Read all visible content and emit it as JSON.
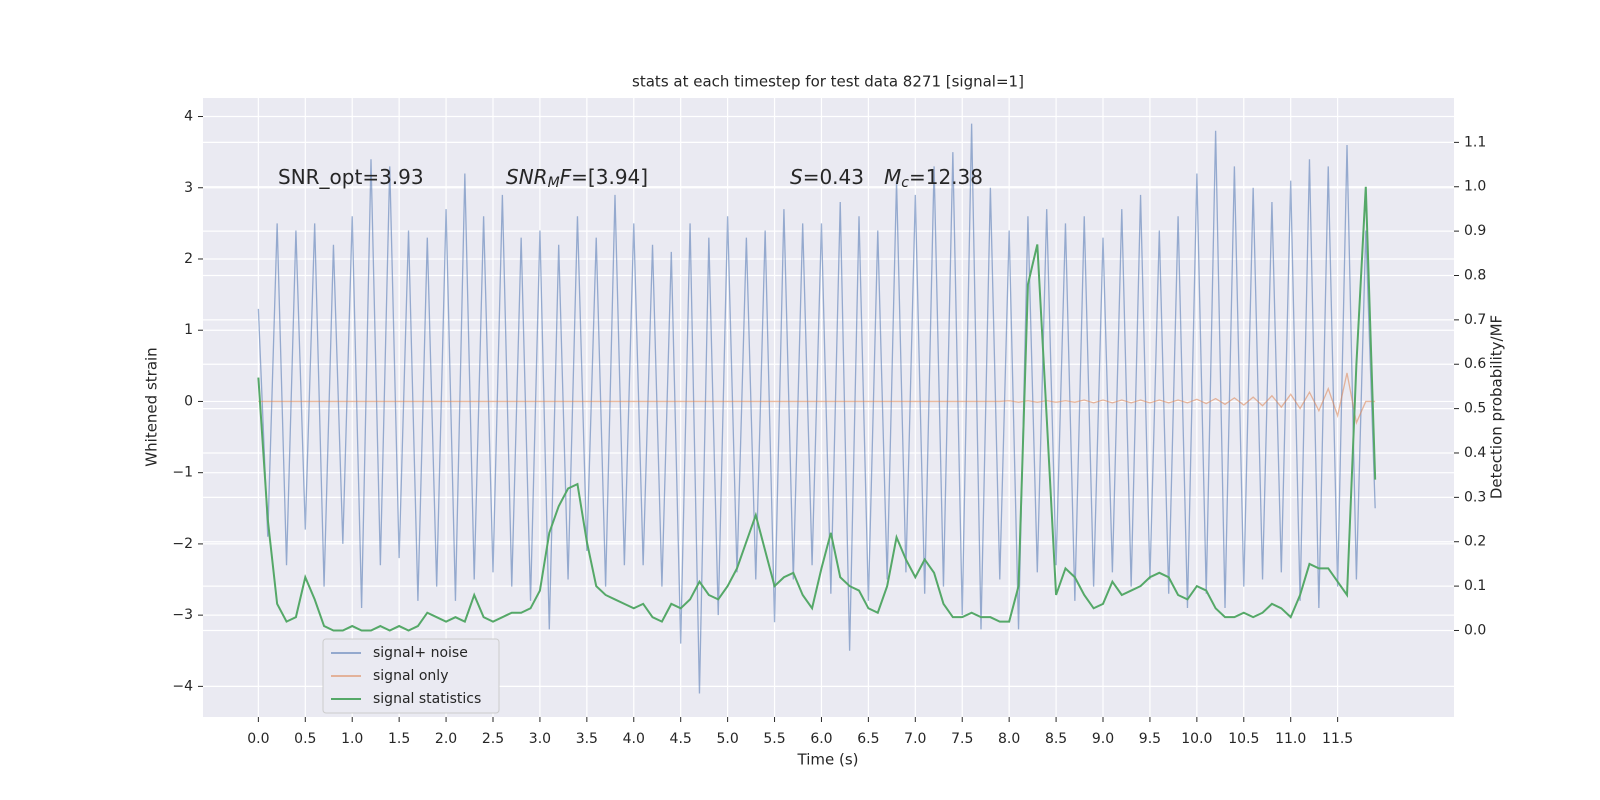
{
  "chart_data": {
    "type": "line",
    "title": "stats at each timestep for test data 8271 [signal=1]",
    "xlabel": "Time (s)",
    "ylabel": "Whitened strain",
    "y2label": "Detection probability/MF",
    "annotations": [
      [
        {
          "text": "SNR_opt=3.93"
        }
      ],
      [
        {
          "text": "SNR",
          "italic": true
        },
        {
          "text": "M",
          "italic": true,
          "sub": true
        },
        {
          "text": "F",
          "italic": true
        },
        {
          "text": "=[3.94]"
        }
      ],
      [
        {
          "text": "S",
          "italic": true
        },
        {
          "text": "=0.43"
        }
      ],
      [
        {
          "text": "M",
          "italic": true
        },
        {
          "text": "c",
          "italic": true,
          "sub": true
        },
        {
          "text": "=12.38"
        }
      ]
    ],
    "x": [
      0,
      0.1,
      0.2,
      0.3,
      0.4,
      0.5,
      0.6,
      0.7,
      0.8,
      0.9,
      1,
      1.1,
      1.2,
      1.3,
      1.4,
      1.5,
      1.6,
      1.7,
      1.8,
      1.9,
      2,
      2.1,
      2.2,
      2.3,
      2.4,
      2.5,
      2.6,
      2.7,
      2.8,
      2.9,
      3,
      3.1,
      3.2,
      3.3,
      3.4,
      3.5,
      3.6,
      3.7,
      3.8,
      3.9,
      4,
      4.1,
      4.2,
      4.3,
      4.4,
      4.5,
      4.6,
      4.7,
      4.8,
      4.9,
      5,
      5.1,
      5.2,
      5.3,
      5.4,
      5.5,
      5.6,
      5.7,
      5.8,
      5.9,
      6,
      6.1,
      6.2,
      6.3,
      6.4,
      6.5,
      6.6,
      6.7,
      6.8,
      6.9,
      7,
      7.1,
      7.2,
      7.3,
      7.4,
      7.5,
      7.6,
      7.7,
      7.8,
      7.9,
      8,
      8.1,
      8.2,
      8.3,
      8.4,
      8.5,
      8.6,
      8.7,
      8.8,
      8.9,
      9,
      9.1,
      9.2,
      9.3,
      9.4,
      9.5,
      9.6,
      9.7,
      9.8,
      9.9,
      10,
      10.1,
      10.2,
      10.3,
      10.4,
      10.5,
      10.6,
      10.7,
      10.8,
      10.9,
      11,
      11.1,
      11.2,
      11.3,
      11.4,
      11.5,
      11.6,
      11.7,
      11.8,
      11.9
    ],
    "series": [
      {
        "name": "signal+ noise",
        "color": "#4c72b0",
        "values": [
          1.3,
          -1.9,
          2.5,
          -2.3,
          2.4,
          -1.8,
          2.5,
          -2.6,
          2.2,
          -2.0,
          2.6,
          -2.9,
          3.4,
          -2.3,
          3.3,
          -2.2,
          2.4,
          -2.8,
          2.3,
          -2.6,
          2.7,
          -2.8,
          3.2,
          -2.5,
          2.6,
          -2.4,
          2.9,
          -2.6,
          2.3,
          -2.8,
          2.4,
          -3.2,
          2.2,
          -2.5,
          2.6,
          -2.1,
          2.3,
          -2.6,
          2.9,
          -2.3,
          2.5,
          -2.3,
          2.2,
          -2.6,
          2.1,
          -3.4,
          2.5,
          -4.1,
          2.3,
          -3.0,
          2.6,
          -2.4,
          2.3,
          -2.5,
          2.4,
          -3.1,
          2.7,
          -2.5,
          2.5,
          -2.3,
          2.5,
          -2.7,
          2.8,
          -3.5,
          2.6,
          -2.8,
          2.4,
          -2.5,
          3.1,
          -2.4,
          2.9,
          -2.7,
          3.3,
          -2.6,
          3.5,
          -3.0,
          3.9,
          -3.2,
          3.0,
          -2.5,
          2.4,
          -3.2,
          2.6,
          -2.4,
          2.7,
          -2.3,
          2.5,
          -2.8,
          2.6,
          -2.6,
          2.3,
          -2.4,
          2.7,
          -2.6,
          2.9,
          -2.5,
          2.4,
          -2.7,
          2.6,
          -2.9,
          3.2,
          -2.7,
          3.8,
          -2.9,
          3.3,
          -2.6,
          3.0,
          -2.5,
          2.8,
          -2.4,
          3.1,
          -2.8,
          3.4,
          -2.9,
          3.3,
          -2.6,
          3.6,
          -2.5,
          2.4,
          -1.5
        ]
      },
      {
        "name": "signal only",
        "color": "#dd8452",
        "values": [
          0,
          0,
          0,
          0,
          0,
          0,
          0,
          0,
          0,
          0,
          0,
          0,
          0,
          0,
          0,
          0,
          0,
          0,
          0,
          0,
          0,
          0,
          0,
          0,
          0,
          0,
          0,
          0,
          0,
          0,
          0,
          0,
          0,
          0,
          0,
          0,
          0,
          0,
          0,
          0,
          0,
          0,
          0,
          0,
          0,
          0,
          0,
          0,
          0,
          0,
          0,
          0,
          0,
          0,
          0,
          0,
          0,
          0,
          0,
          0,
          0,
          0,
          0,
          0,
          0,
          0,
          0,
          0,
          0,
          0,
          0,
          0,
          0,
          0,
          0,
          0,
          0,
          0,
          0,
          0,
          0.01,
          -0.01,
          0.01,
          -0.01,
          0.01,
          -0.01,
          0.01,
          -0.01,
          0.02,
          -0.02,
          0.02,
          -0.02,
          0.02,
          -0.02,
          0.02,
          -0.02,
          0.02,
          -0.02,
          0.02,
          -0.02,
          0.03,
          -0.03,
          0.04,
          -0.04,
          0.05,
          -0.05,
          0.06,
          -0.06,
          0.08,
          -0.08,
          0.1,
          -0.1,
          0.13,
          -0.13,
          0.18,
          -0.2,
          0.4,
          -0.3,
          0,
          0
        ]
      },
      {
        "name": "signal statistics",
        "color": "#55a868",
        "axis": "y2",
        "values": [
          0.57,
          0.25,
          0.06,
          0.02,
          0.03,
          0.12,
          0.07,
          0.01,
          0.0,
          0.0,
          0.01,
          0.0,
          0.0,
          0.01,
          0.0,
          0.01,
          0.0,
          0.01,
          0.04,
          0.03,
          0.02,
          0.03,
          0.02,
          0.08,
          0.03,
          0.02,
          0.03,
          0.04,
          0.04,
          0.05,
          0.09,
          0.22,
          0.28,
          0.32,
          0.33,
          0.2,
          0.1,
          0.08,
          0.07,
          0.06,
          0.05,
          0.06,
          0.03,
          0.02,
          0.06,
          0.05,
          0.07,
          0.11,
          0.08,
          0.07,
          0.1,
          0.14,
          0.2,
          0.26,
          0.18,
          0.1,
          0.12,
          0.13,
          0.08,
          0.05,
          0.14,
          0.22,
          0.12,
          0.1,
          0.09,
          0.05,
          0.04,
          0.1,
          0.21,
          0.16,
          0.12,
          0.16,
          0.13,
          0.06,
          0.03,
          0.03,
          0.04,
          0.03,
          0.03,
          0.02,
          0.02,
          0.1,
          0.78,
          0.87,
          0.48,
          0.08,
          0.14,
          0.12,
          0.08,
          0.05,
          0.06,
          0.11,
          0.08,
          0.09,
          0.1,
          0.12,
          0.13,
          0.12,
          0.08,
          0.07,
          0.1,
          0.09,
          0.05,
          0.03,
          0.03,
          0.04,
          0.03,
          0.04,
          0.06,
          0.05,
          0.03,
          0.08,
          0.15,
          0.14,
          0.14,
          0.11,
          0.08,
          0.6,
          1.0,
          0.34
        ]
      }
    ],
    "xlim": [
      -0.59,
      12.74
    ],
    "xticks": [
      {
        "value": 0,
        "label": "0.0"
      },
      {
        "value": 0.5,
        "label": "0.5"
      },
      {
        "value": 1,
        "label": "1.0"
      },
      {
        "value": 1.5,
        "label": "1.5"
      },
      {
        "value": 2,
        "label": "2.0"
      },
      {
        "value": 2.5,
        "label": "2.5"
      },
      {
        "value": 3,
        "label": "3.0"
      },
      {
        "value": 3.5,
        "label": "3.5"
      },
      {
        "value": 4,
        "label": "4.0"
      },
      {
        "value": 4.5,
        "label": "4.5"
      },
      {
        "value": 5,
        "label": "5.0"
      },
      {
        "value": 5.5,
        "label": "5.5"
      },
      {
        "value": 6,
        "label": "6.0"
      },
      {
        "value": 6.5,
        "label": "6.5"
      },
      {
        "value": 7,
        "label": "7.0"
      },
      {
        "value": 7.5,
        "label": "7.5"
      },
      {
        "value": 8,
        "label": "8.0"
      },
      {
        "value": 8.5,
        "label": "8.5"
      },
      {
        "value": 9,
        "label": "9.0"
      },
      {
        "value": 9.5,
        "label": "9.5"
      },
      {
        "value": 10,
        "label": "10.0"
      },
      {
        "value": 10.5,
        "label": "10.5"
      },
      {
        "value": 11,
        "label": "11.0"
      },
      {
        "value": 11.5,
        "label": "11.5"
      }
    ],
    "ylim": [
      -4.43,
      4.26
    ],
    "yticks": [
      {
        "value": -4,
        "label": "−4"
      },
      {
        "value": -3,
        "label": "−3"
      },
      {
        "value": -2,
        "label": "−2"
      },
      {
        "value": -1,
        "label": "−1"
      },
      0,
      1,
      2,
      3,
      4
    ],
    "y2lim": [
      -0.195,
      1.2
    ],
    "y2ticks": [
      {
        "value": 0,
        "label": "0.0"
      },
      {
        "value": 0.1,
        "label": "0.1"
      },
      {
        "value": 0.2,
        "label": "0.2"
      },
      {
        "value": 0.3,
        "label": "0.3"
      },
      {
        "value": 0.4,
        "label": "0.4"
      },
      {
        "value": 0.5,
        "label": "0.5"
      },
      {
        "value": 0.6,
        "label": "0.6"
      },
      {
        "value": 0.7,
        "label": "0.7"
      },
      {
        "value": 0.8,
        "label": "0.8"
      },
      {
        "value": 0.9,
        "label": "0.9"
      },
      {
        "value": 1,
        "label": "1.0"
      },
      {
        "value": 1.1,
        "label": "1.1"
      }
    ],
    "grid": true,
    "legend": "lower left"
  }
}
